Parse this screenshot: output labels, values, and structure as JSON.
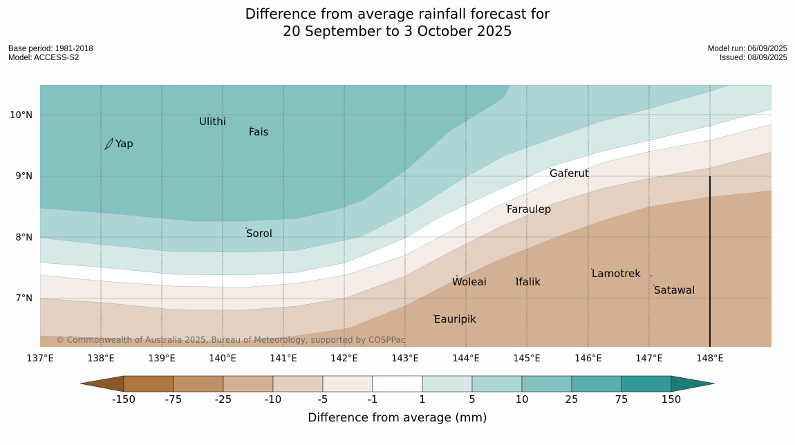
{
  "title": {
    "line1": "Difference from average rainfall forecast for",
    "line2": "20 September to 3 October 2025"
  },
  "meta": {
    "base_period": "Base period: 1981-2018",
    "model": "Model: ACCESS-S2",
    "model_run": "Model run: 06/09/2025",
    "issued": "Issued: 08/09/2025"
  },
  "map": {
    "copyright": "© Commonwealth of Australia 2025, Bureau of Meteorology, supported by COSPPac",
    "lon_labels": [
      "137°E",
      "138°E",
      "139°E",
      "140°E",
      "141°E",
      "142°E",
      "143°E",
      "144°E",
      "145°E",
      "146°E",
      "147°E",
      "148°E"
    ],
    "lat_labels": [
      "10°N",
      "9°N",
      "8°N",
      "7°N"
    ],
    "places": [
      {
        "name": "Yap"
      },
      {
        "name": "Ulithi"
      },
      {
        "name": "Fais"
      },
      {
        "name": "Gaferut"
      },
      {
        "name": "Faraulep"
      },
      {
        "name": "Sorol"
      },
      {
        "name": "Woleai"
      },
      {
        "name": "Ifalik"
      },
      {
        "name": "Lamotrek"
      },
      {
        "name": "Satawal"
      },
      {
        "name": "Eauripik"
      }
    ]
  },
  "colorbar": {
    "title": "Difference from average (mm)",
    "ticks": [
      "-150",
      "-75",
      "-25",
      "-10",
      "-5",
      "-1",
      "1",
      "5",
      "10",
      "25",
      "75",
      "150"
    ],
    "colors": {
      "lt_-150": "#8a5a26",
      "-150_-75": "#b0763f",
      "-75_-25": "#bf8f66",
      "-25_-10": "#d4b092",
      "-10_-5": "#e3d0c0",
      "-5_-1": "#f4ece6",
      "-1_1": "#ffffff",
      "1_5": "#d5e9e8",
      "5_10": "#acd6d5",
      "10_25": "#84c2c1",
      "25_75": "#58aeac",
      "75_150": "#329a96",
      "gt_150": "#1e7b77"
    }
  }
}
